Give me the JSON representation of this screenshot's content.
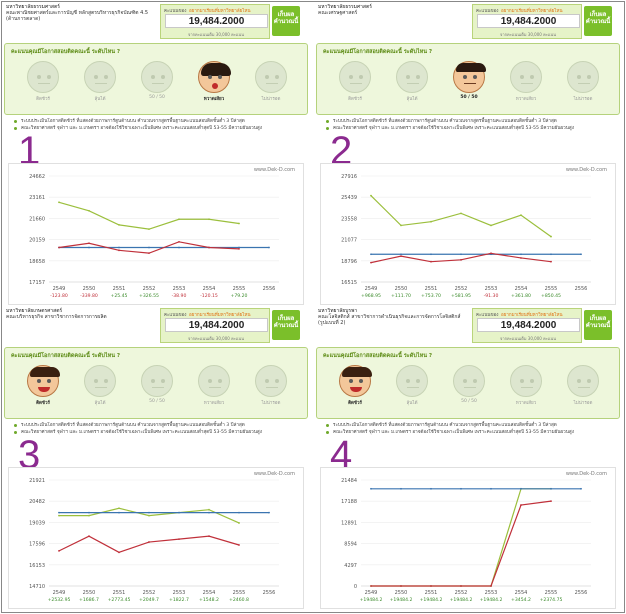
{
  "vote_title": "คะแนนคุณมีโอกาสสอบติดคณะนี้ ระดับไหน ?",
  "score_label": "คะแนนของ",
  "score_label_orange": "อยากมาเรียนที่มหาวิทยาลัยไหน",
  "score_value": "19,484.2000",
  "score_sub": "จากคะแนนเต็ม 30,000 คะแนน",
  "green_button": "เก็บผล คำนวณนี้",
  "website": "www.Dek-D.com",
  "face_labels": [
    "ติดชัวร์",
    "ลุ้นได้",
    "50 / 50",
    "หวาดเสียว",
    "ไม่น่ารอด"
  ],
  "colors": {
    "accent_green": "#7bbf2a",
    "panel_bg": "#eef7dc",
    "number_purple": "#8b2a8f",
    "line_green": "#9bbf3c",
    "line_blue": "#3a74b0",
    "line_red": "#c0303a"
  },
  "panels": [
    {
      "number": "1",
      "uni_name": "มหาวิทยาลัยธรรมศาสตร์",
      "faculty": "คณะพาณิชยศาสตร์และการบัญชี หลักสูตรบริหารธุรกิจบัณฑิต 4.5 (ด้านการตลาด)",
      "active_face": 3,
      "bullets": [
        "ระบบประเมินโอกาสติดชัวร์ ที่แสดงด้วยภาพการ์ตูนด้านบน คำนวณจากสูตรพื้นฐานคะแนนสอบติดชั้นต่ำ 3 ปีล่าสุด",
        "คณะวิทยาศาสตร์ จุฬาฯ และ ม.เกษตรฯ อาจต้องใช้วิชาเฉพาะเป็นพิเศษ เพราะคะแนนสอบต่ำสุดปี 53-55 มีความผันผวนสูง"
      ],
      "chart_data": {
        "type": "line",
        "x": [
          "2549",
          "2550",
          "2551",
          "2552",
          "2553",
          "2554",
          "2555",
          "2556"
        ],
        "yticks": [
          "24662",
          "23161",
          "21660",
          "20159",
          "18658",
          "17157"
        ],
        "ylim": [
          17157,
          24662
        ],
        "series": [
          {
            "values": [
              22800,
              22200,
              21200,
              20900,
              21600,
              21600,
              21300,
              null
            ],
            "color": "#9bbf3c"
          },
          {
            "values": [
              19600,
              19600,
              19600,
              19600,
              19600,
              19600,
              19600,
              19600
            ],
            "color": "#3a74b0"
          },
          {
            "values": [
              19600,
              19900,
              19400,
              19200,
              20000,
              19600,
              19500,
              null
            ],
            "color": "#c0303a"
          }
        ],
        "diffs": [
          "-123.80",
          "-339.80",
          "+25.45",
          "+326.55",
          "-38.90",
          "-120.15",
          "+79.20"
        ],
        "diff_signs": [
          "-",
          "-",
          "+",
          "+",
          "-",
          "-",
          "+"
        ]
      }
    },
    {
      "number": "2",
      "uni_name": "มหาวิทยาลัยธรรมศาสตร์",
      "faculty": "คณะเศรษฐศาสตร์",
      "active_face": 2,
      "bullets": [
        "ระบบประเมินโอกาสติดชัวร์ ที่แสดงด้วยภาพการ์ตูนด้านบน คำนวณจากสูตรพื้นฐานคะแนนสอบติดชั้นต่ำ 3 ปีล่าสุด",
        "คณะวิทยาศาสตร์ จุฬาฯ และ ม.เกษตรฯ อาจต้องใช้วิชาเฉพาะเป็นพิเศษ เพราะคะแนนสอบต่ำสุดปี 53-55 มีความผันผวนสูง"
      ],
      "chart_data": {
        "type": "line",
        "x": [
          "2549",
          "2550",
          "2551",
          "2552",
          "2553",
          "2554",
          "2555",
          "2556"
        ],
        "yticks": [
          "27916",
          "25439",
          "23558",
          "21077",
          "18796",
          "16515"
        ],
        "ylim": [
          16515,
          27916
        ],
        "series": [
          {
            "values": [
              25800,
              22600,
              23000,
              23900,
              22600,
              23700,
              21400,
              null
            ],
            "color": "#9bbf3c"
          },
          {
            "values": [
              19500,
              19500,
              19500,
              19500,
              19500,
              19500,
              19500,
              19500
            ],
            "color": "#3a74b0"
          },
          {
            "values": [
              18600,
              19300,
              18700,
              18900,
              19600,
              19100,
              18700,
              null
            ],
            "color": "#c0303a"
          }
        ],
        "diffs": [
          "+968.95",
          "+111.70",
          "+753.70",
          "+581.95",
          "-91.30",
          "+361.80",
          "+850.45"
        ],
        "diff_signs": [
          "+",
          "+",
          "+",
          "+",
          "-",
          "+",
          "+"
        ]
      }
    },
    {
      "number": "3",
      "uni_name": "มหาวิทยาลัยเกษตรศาสตร์",
      "faculty": "คณะบริหารธุรกิจ สาขาวิชาการจัดการการผลิต",
      "active_face": 0,
      "bullets": [
        "ระบบประเมินโอกาสติดชัวร์ ที่แสดงด้วยภาพการ์ตูนด้านบน คำนวณจากสูตรพื้นฐานคะแนนสอบติดชั้นต่ำ 3 ปีล่าสุด",
        "คณะวิทยาศาสตร์ จุฬาฯ และ ม.เกษตรฯ อาจต้องใช้วิชาเฉพาะเป็นพิเศษ เพราะคะแนนสอบต่ำสุดปี 53-55 มีความผันผวนสูง"
      ],
      "chart_data": {
        "type": "line",
        "x": [
          "2549",
          "2550",
          "2551",
          "2552",
          "2553",
          "2554",
          "2555",
          "2556"
        ],
        "yticks": [
          "21921",
          "20482",
          "19039",
          "17596",
          "16153",
          "14710"
        ],
        "ylim": [
          14710,
          21921
        ],
        "series": [
          {
            "values": [
              19500,
              19500,
              20000,
              19500,
              19700,
              19900,
              19000,
              null
            ],
            "color": "#9bbf3c"
          },
          {
            "values": [
              19700,
              19700,
              19700,
              19700,
              19700,
              19700,
              19700,
              19700
            ],
            "color": "#3a74b0"
          },
          {
            "values": [
              17100,
              18100,
              17000,
              17700,
              17900,
              18100,
              17500,
              null
            ],
            "color": "#c0303a"
          }
        ],
        "diffs": [
          "+2532.95",
          "+1686.7",
          "+2773.45",
          "+2049.7",
          "+1822.7",
          "+1548.2",
          "+2460.8"
        ],
        "diff_signs": [
          "+",
          "+",
          "+",
          "+",
          "+",
          "+",
          "+"
        ]
      }
    },
    {
      "number": "4",
      "uni_name": "มหาวิทยาลัยบูรพา",
      "faculty": "คณะโลจิสติกส์ สาขาวิชาการดำเนินธุรกิจและการจัดการโลจิสติกส์ (รูปแบบที่ 2)",
      "active_face": 0,
      "bullets": [
        "ระบบประเมินโอกาสติดชัวร์ ที่แสดงด้วยภาพการ์ตูนด้านบน คำนวณจากสูตรพื้นฐานคะแนนสอบติดชั้นต่ำ 3 ปีล่าสุด",
        "คณะวิทยาศาสตร์ จุฬาฯ และ ม.เกษตรฯ อาจต้องใช้วิชาเฉพาะเป็นพิเศษ เพราะคะแนนสอบต่ำสุดปี 53-55 มีความผันผวนสูง"
      ],
      "chart_data": {
        "type": "line",
        "x": [
          "2549",
          "2550",
          "2551",
          "2552",
          "2553",
          "2554",
          "2555",
          "2556"
        ],
        "yticks": [
          "21484",
          "17188",
          "12891",
          "8594",
          "4297",
          "0"
        ],
        "ylim": [
          0,
          21484
        ],
        "series": [
          {
            "values": [
              0,
              0,
              0,
              0,
              0,
              19700,
              19700,
              null
            ],
            "color": "#9bbf3c"
          },
          {
            "values": [
              19700,
              19700,
              19700,
              19700,
              19700,
              19700,
              19700,
              19700
            ],
            "color": "#3a74b0"
          },
          {
            "values": [
              0,
              0,
              0,
              0,
              0,
              16400,
              17200,
              null
            ],
            "color": "#c0303a"
          }
        ],
        "diffs": [
          "+19484.2",
          "+19484.2",
          "+19484.2",
          "+19484.2",
          "+19484.2",
          "+3454.2",
          "+2374.75"
        ],
        "diff_signs": [
          "+",
          "+",
          "+",
          "+",
          "+",
          "+",
          "+"
        ]
      }
    }
  ]
}
